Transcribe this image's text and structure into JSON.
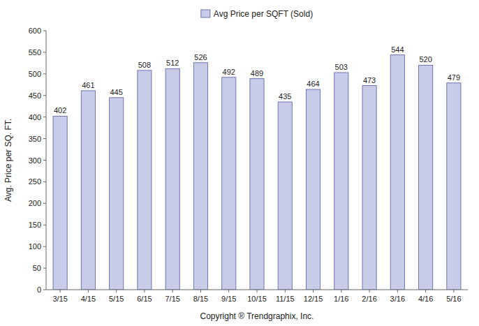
{
  "chart_data": {
    "type": "bar",
    "categories": [
      "3/15",
      "4/15",
      "5/15",
      "6/15",
      "7/15",
      "8/15",
      "9/15",
      "10/15",
      "11/15",
      "12/15",
      "1/16",
      "2/16",
      "3/16",
      "4/16",
      "5/16"
    ],
    "series": [
      {
        "name": "Avg Price per SQFT (Sold)",
        "color": "#c8cce8",
        "values": [
          402,
          461,
          445,
          508,
          512,
          526,
          492,
          489,
          435,
          464,
          503,
          473,
          544,
          520,
          479
        ]
      }
    ],
    "xlabel": "Copyright ® Trendgraphix, Inc.",
    "ylabel": "Avg. Price per SQ. FT.",
    "ylim": [
      0,
      600
    ],
    "yticks": [
      0,
      50,
      100,
      150,
      200,
      250,
      300,
      350,
      400,
      450,
      500,
      550,
      600
    ],
    "grid": false,
    "legend": "top",
    "data_labels": true
  }
}
